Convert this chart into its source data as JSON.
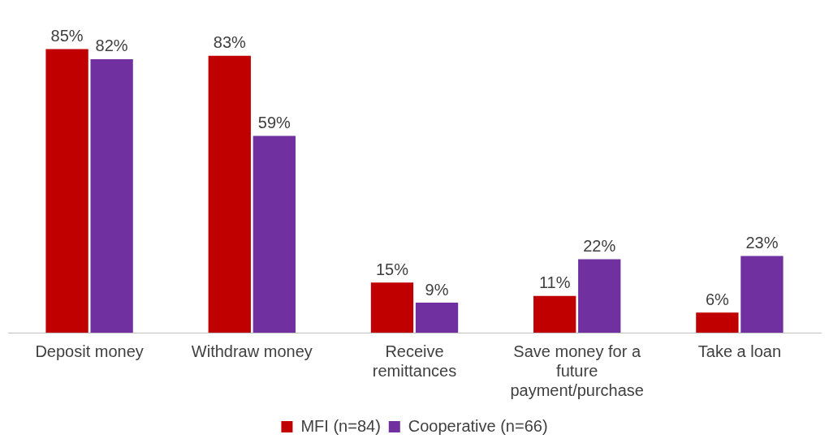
{
  "chart_data": {
    "type": "bar",
    "categories": [
      "Deposit money",
      "Withdraw money",
      "Receive remittances",
      "Save money for a future payment/purchase",
      "Take a loan"
    ],
    "series": [
      {
        "name": "MFI (n=84)",
        "color": "#c00000",
        "values": [
          85,
          83,
          15,
          11,
          6
        ],
        "value_labels": [
          "85%",
          "83%",
          "15%",
          "11%",
          "6%"
        ]
      },
      {
        "name": "Cooperative (n=66)",
        "color": "#7030a0",
        "values": [
          82,
          59,
          9,
          22,
          23
        ],
        "value_labels": [
          "82%",
          "59%",
          "9%",
          "22%",
          "23%"
        ]
      }
    ],
    "legend": "bottom",
    "grid": false,
    "tick_labels": "x"
  }
}
